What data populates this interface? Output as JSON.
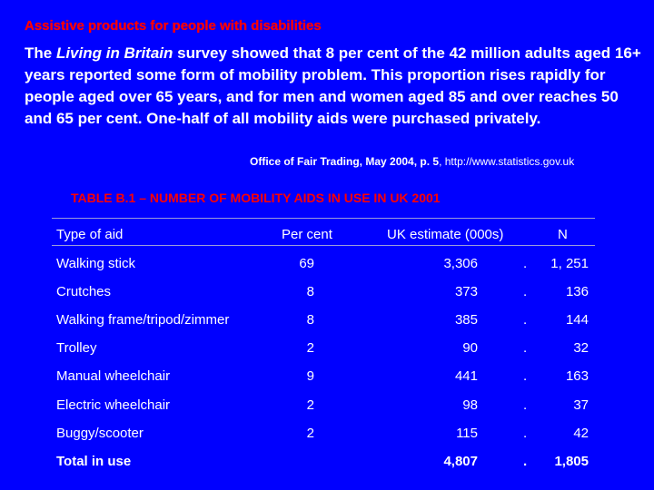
{
  "slide": {
    "title": "Assistive products for people with disabilities",
    "intro_pre": "The ",
    "intro_italic": "Living in Britain",
    "intro_post": " survey showed that 8 per cent of the 42 million adults aged 16+ years reported some form of mobility problem.  This proportion rises rapidly for people aged over 65 years, and for men and women aged 85 and over reaches 50 and 65 per cent. One-half of all mobility aids were purchased privately.",
    "source_bold": "Office of Fair Trading, May 2004, p. 5",
    "source_rest": ", http://www.statistics.gov.uk"
  },
  "table": {
    "title": "TABLE B.1 – NUMBER OF MOBILITY AIDS IN USE IN UK 2001",
    "headers": {
      "type": "Type of aid",
      "percent": "Per cent",
      "estimate": "UK estimate (000s)",
      "n": "N"
    },
    "rows": [
      {
        "type": "Walking stick",
        "percent": "69",
        "estimate": "3,306",
        "dot": ".",
        "n": "1, 251"
      },
      {
        "type": "Crutches",
        "percent": "8",
        "estimate": "373",
        "dot": ".",
        "n": "136"
      },
      {
        "type": "Walking frame/tripod/zimmer",
        "percent": "8",
        "estimate": "385",
        "dot": ".",
        "n": "144"
      },
      {
        "type": "Trolley",
        "percent": "2",
        "estimate": "90",
        "dot": ".",
        "n": "32"
      },
      {
        "type": "Manual wheelchair",
        "percent": "9",
        "estimate": "441",
        "dot": ".",
        "n": "163"
      },
      {
        "type": "Electric wheelchair",
        "percent": "2",
        "estimate": "98",
        "dot": ".",
        "n": "37"
      },
      {
        "type": "Buggy/scooter",
        "percent": "2",
        "estimate": "115",
        "dot": ".",
        "n": "42"
      }
    ],
    "total": {
      "type": "Total in use",
      "estimate": "4,807",
      "dot": ".",
      "n": "1,805"
    }
  }
}
